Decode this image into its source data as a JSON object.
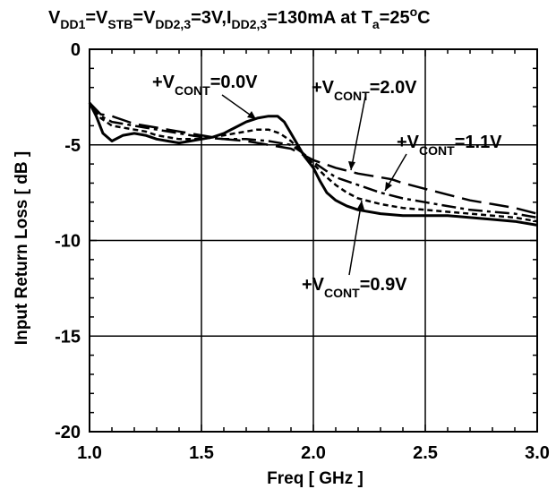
{
  "chart_data": {
    "type": "line",
    "title": "",
    "conditions": {
      "v_prefix": "V",
      "sub_dd1": "DD1",
      "v_stb": "=V",
      "sub_stb": "STB",
      "v_dd23": "=V",
      "sub_dd23": "DD2,3",
      "mid": "=3V,I",
      "sub_idd": "DD2,3",
      "tail": "=130mA at T",
      "sub_a": "a",
      "temp": "=25",
      "deg": "o",
      "unit": "C"
    },
    "xlabel": "Freq [ GHz ]",
    "ylabel": "Input Return Loss  [ dB ]",
    "xlim": [
      1.0,
      3.0
    ],
    "ylim": [
      -20,
      0
    ],
    "xticks": [
      "1.0",
      "1.5",
      "2.0",
      "2.5",
      "3.0"
    ],
    "yticks": [
      "0",
      "-5",
      "-10",
      "-15",
      "-20"
    ],
    "grid": true,
    "series": [
      {
        "name": "+VCONT=0.0V",
        "style": "solid",
        "x": [
          1.0,
          1.03,
          1.06,
          1.1,
          1.15,
          1.2,
          1.25,
          1.3,
          1.35,
          1.4,
          1.45,
          1.5,
          1.55,
          1.6,
          1.65,
          1.7,
          1.75,
          1.8,
          1.84,
          1.87,
          1.9,
          1.93,
          1.96,
          2.0,
          2.03,
          2.06,
          2.1,
          2.15,
          2.2,
          2.3,
          2.4,
          2.5,
          2.6,
          2.7,
          2.8,
          2.9,
          3.0
        ],
        "y": [
          -2.8,
          -3.5,
          -4.4,
          -4.8,
          -4.5,
          -4.4,
          -4.5,
          -4.7,
          -4.8,
          -4.9,
          -4.8,
          -4.7,
          -4.6,
          -4.4,
          -4.1,
          -3.8,
          -3.6,
          -3.5,
          -3.5,
          -3.8,
          -4.4,
          -5.0,
          -5.6,
          -6.2,
          -6.9,
          -7.5,
          -7.9,
          -8.2,
          -8.4,
          -8.6,
          -8.7,
          -8.7,
          -8.7,
          -8.8,
          -8.9,
          -9.0,
          -9.2
        ]
      },
      {
        "name": "+VCONT=0.9V",
        "style": "dotted",
        "x": [
          1.0,
          1.05,
          1.1,
          1.15,
          1.2,
          1.25,
          1.3,
          1.35,
          1.4,
          1.5,
          1.55,
          1.6,
          1.65,
          1.7,
          1.75,
          1.8,
          1.85,
          1.9,
          1.95,
          2.0,
          2.05,
          2.1,
          2.15,
          2.2,
          2.3,
          2.4,
          2.5,
          2.6,
          2.7,
          2.8,
          2.9,
          3.0
        ],
        "y": [
          -2.8,
          -3.6,
          -4.0,
          -4.1,
          -4.2,
          -4.3,
          -4.5,
          -4.6,
          -4.7,
          -4.7,
          -4.6,
          -4.5,
          -4.4,
          -4.3,
          -4.2,
          -4.2,
          -4.4,
          -4.8,
          -5.4,
          -6.0,
          -6.6,
          -7.1,
          -7.5,
          -7.8,
          -8.1,
          -8.3,
          -8.4,
          -8.5,
          -8.6,
          -8.7,
          -8.8,
          -9.0
        ]
      },
      {
        "name": "+VCONT=2.0V",
        "style": "long-dash",
        "x": [
          1.0,
          1.05,
          1.1,
          1.15,
          1.2,
          1.3,
          1.4,
          1.5,
          1.6,
          1.7,
          1.8,
          1.9,
          1.95,
          2.0,
          2.1,
          2.2,
          2.3,
          2.35,
          2.4,
          2.5,
          2.6,
          2.7,
          2.8,
          2.9,
          3.0
        ],
        "y": [
          -2.8,
          -3.4,
          -3.5,
          -3.7,
          -3.9,
          -4.1,
          -4.3,
          -4.5,
          -4.7,
          -4.8,
          -5.0,
          -5.2,
          -5.5,
          -5.8,
          -6.2,
          -6.5,
          -6.7,
          -6.8,
          -7.0,
          -7.3,
          -7.6,
          -7.9,
          -8.1,
          -8.3,
          -8.6
        ]
      },
      {
        "name": "+VCONT=1.1V",
        "style": "dash-dot",
        "x": [
          1.0,
          1.05,
          1.1,
          1.2,
          1.3,
          1.4,
          1.5,
          1.6,
          1.7,
          1.8,
          1.9,
          1.95,
          2.0,
          2.05,
          2.1,
          2.2,
          2.3,
          2.4,
          2.5,
          2.6,
          2.7,
          2.8,
          2.9,
          3.0
        ],
        "y": [
          -2.8,
          -3.5,
          -3.8,
          -4.0,
          -4.2,
          -4.4,
          -4.6,
          -4.7,
          -4.7,
          -4.8,
          -5.0,
          -5.4,
          -5.9,
          -6.3,
          -6.7,
          -7.1,
          -7.5,
          -7.8,
          -8.0,
          -8.2,
          -8.4,
          -8.5,
          -8.6,
          -8.8
        ]
      }
    ],
    "annotations": [
      {
        "plus": "+V",
        "sub": "CONT",
        "value": "=0.0V"
      },
      {
        "plus": "+V",
        "sub": "CONT",
        "value": "=2.0V"
      },
      {
        "plus": "+V",
        "sub": "CONT",
        "value": "=1.1V"
      },
      {
        "plus": "+V",
        "sub": "CONT",
        "value": "=0.9V"
      }
    ]
  }
}
